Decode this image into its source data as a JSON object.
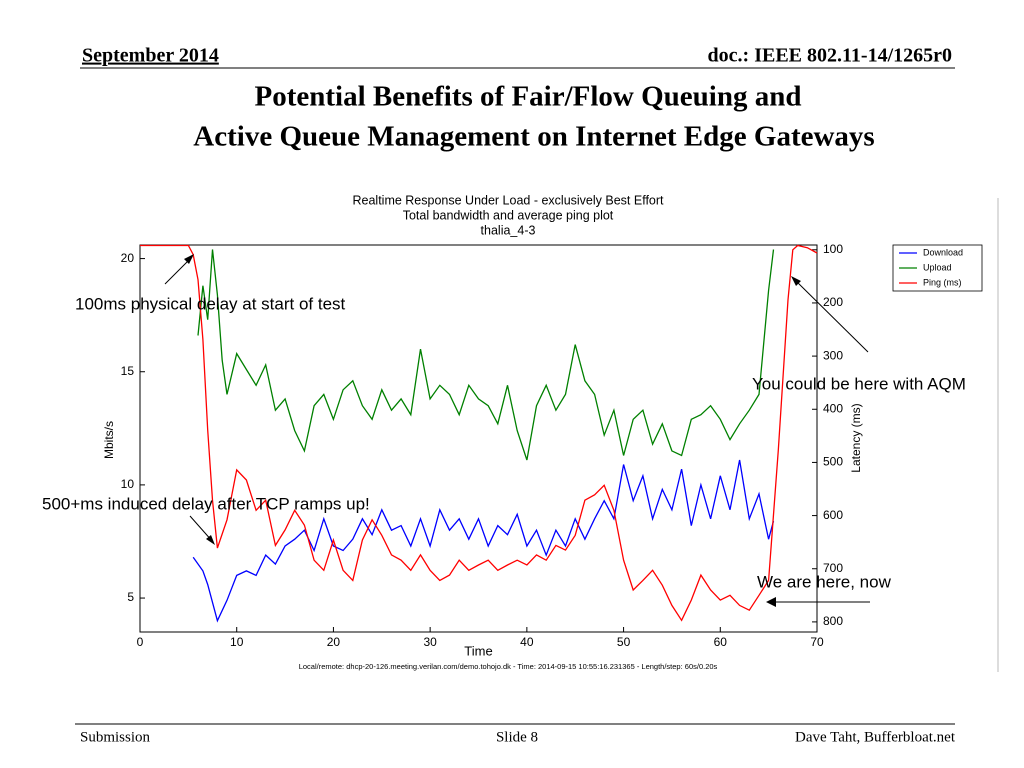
{
  "header": {
    "date": "September 2014",
    "doc": "doc.: IEEE 802.11-14/1265r0",
    "title_lines": [
      "Potential Benefits of Fair/Flow Queuing and",
      "Active Queue Management on Internet Edge Gateways"
    ]
  },
  "footer": {
    "left": "Submission",
    "center": "Slide 8",
    "right": "Dave Taht, Bufferbloat.net"
  },
  "annotations": [
    "100ms physical delay at start of test",
    "You could be here with AQM",
    "500+ms induced delay after TCP ramps up!",
    "We are here, now"
  ],
  "chart_data": {
    "type": "line",
    "title_lines": [
      "Realtime Response Under Load - exclusively Best Effort",
      "Total bandwidth and average ping plot",
      "thalia_4-3"
    ],
    "caption": "Local/remote: dhcp-20-126.meeting.verilan.com/demo.tohojo.dk - Time: 2014-09-15 10:55:16.231365 - Length/step: 60s/0.20s",
    "xlabel": "Time",
    "ylabel": "Mbits/s",
    "y2label": "Latency (ms)",
    "xlim": [
      0,
      70
    ],
    "xticks": [
      0,
      10,
      20,
      30,
      40,
      50,
      60,
      70
    ],
    "ylim": [
      3.5,
      20.6
    ],
    "yticks": [
      5,
      10,
      15,
      20
    ],
    "y2lim": [
      819,
      91
    ],
    "y2ticks": [
      100,
      200,
      300,
      400,
      500,
      600,
      700,
      800
    ],
    "legend": "upper right",
    "series": [
      {
        "name": "Download",
        "color": "#0000ff",
        "x": [
          5.5,
          6.5,
          7,
          8,
          9,
          10,
          11,
          12,
          13,
          14,
          15,
          16,
          17,
          18,
          19,
          20,
          21,
          22,
          23,
          24,
          25,
          26,
          27,
          28,
          29,
          30,
          31,
          32,
          33,
          34,
          35,
          36,
          37,
          38,
          39,
          40,
          41,
          42,
          43,
          44,
          45,
          46,
          47,
          48,
          49,
          50,
          51,
          52,
          53,
          54,
          55,
          56,
          57,
          58,
          59,
          60,
          61,
          62,
          63,
          64,
          65,
          65.5
        ],
        "values": [
          6.8,
          6.2,
          5.6,
          4.0,
          4.9,
          6.0,
          6.2,
          6.0,
          6.9,
          6.5,
          7.3,
          7.6,
          8.0,
          7.1,
          8.5,
          7.3,
          7.1,
          7.6,
          8.5,
          7.8,
          8.9,
          8.0,
          8.2,
          7.3,
          8.5,
          7.3,
          8.9,
          8.0,
          8.5,
          7.6,
          8.5,
          7.3,
          8.2,
          7.8,
          8.7,
          7.3,
          8.0,
          6.9,
          8.0,
          7.3,
          8.5,
          7.6,
          8.5,
          9.3,
          8.5,
          10.9,
          9.3,
          10.4,
          8.5,
          9.8,
          8.9,
          10.7,
          8.2,
          10.0,
          8.5,
          10.4,
          8.9,
          11.1,
          8.5,
          9.6,
          7.6,
          8.4
        ]
      },
      {
        "name": "Upload",
        "color": "#008000",
        "x": [
          6,
          6.5,
          7,
          7.5,
          8,
          8.5,
          9,
          10,
          11,
          12,
          13,
          14,
          15,
          16,
          17,
          18,
          19,
          20,
          21,
          22,
          23,
          24,
          25,
          26,
          27,
          28,
          29,
          30,
          31,
          32,
          33,
          34,
          35,
          36,
          37,
          38,
          39,
          40,
          41,
          42,
          43,
          44,
          45,
          46,
          47,
          48,
          49,
          50,
          51,
          52,
          53,
          54,
          55,
          56,
          57,
          58,
          59,
          60,
          61,
          62,
          63,
          64,
          65,
          65.5
        ],
        "values": [
          16.6,
          18.8,
          17.3,
          20.4,
          18.4,
          15.5,
          14.0,
          15.8,
          15.1,
          14.4,
          15.3,
          13.3,
          13.8,
          12.4,
          11.5,
          13.5,
          14.0,
          12.9,
          14.2,
          14.6,
          13.5,
          12.9,
          14.2,
          13.3,
          13.8,
          13.1,
          16.0,
          13.8,
          14.4,
          14.0,
          13.1,
          14.4,
          13.8,
          13.5,
          12.7,
          14.4,
          12.4,
          11.1,
          13.5,
          14.4,
          13.3,
          14.0,
          16.2,
          14.6,
          14.0,
          12.2,
          13.3,
          11.3,
          12.9,
          13.3,
          11.8,
          12.7,
          11.5,
          11.3,
          12.9,
          13.1,
          13.5,
          12.9,
          12.0,
          12.7,
          13.3,
          14.0,
          18.6,
          20.4
        ]
      },
      {
        "name": "Ping (ms)",
        "color": "#ff0000",
        "axis": "y2",
        "x": [
          0,
          5,
          5.5,
          6,
          6.5,
          7,
          7.5,
          8,
          9,
          10,
          11,
          12,
          13,
          14,
          15,
          16,
          17,
          18,
          19,
          20,
          21,
          22,
          23,
          24,
          25,
          26,
          27,
          28,
          29,
          30,
          31,
          32,
          33,
          34,
          35,
          36,
          37,
          38,
          39,
          40,
          41,
          42,
          43,
          44,
          45,
          46,
          47,
          48,
          49,
          50,
          51,
          52,
          53,
          54,
          55,
          56,
          57,
          58,
          59,
          60,
          61,
          62,
          63,
          64,
          65,
          66,
          67,
          67.5,
          68,
          69,
          70
        ],
        "values": [
          92,
          92,
          109,
          156,
          269,
          439,
          571,
          661,
          608,
          514,
          533,
          590,
          571,
          656,
          627,
          590,
          618,
          684,
          703,
          646,
          703,
          722,
          646,
          608,
          637,
          674,
          684,
          703,
          674,
          703,
          722,
          712,
          684,
          703,
          693,
          684,
          703,
          693,
          684,
          693,
          674,
          684,
          656,
          665,
          637,
          571,
          561,
          543,
          590,
          684,
          740,
          722,
          703,
          731,
          769,
          797,
          759,
          712,
          740,
          759,
          750,
          769,
          778,
          750,
          722,
          477,
          194,
          100,
          92,
          96,
          106
        ]
      }
    ]
  }
}
